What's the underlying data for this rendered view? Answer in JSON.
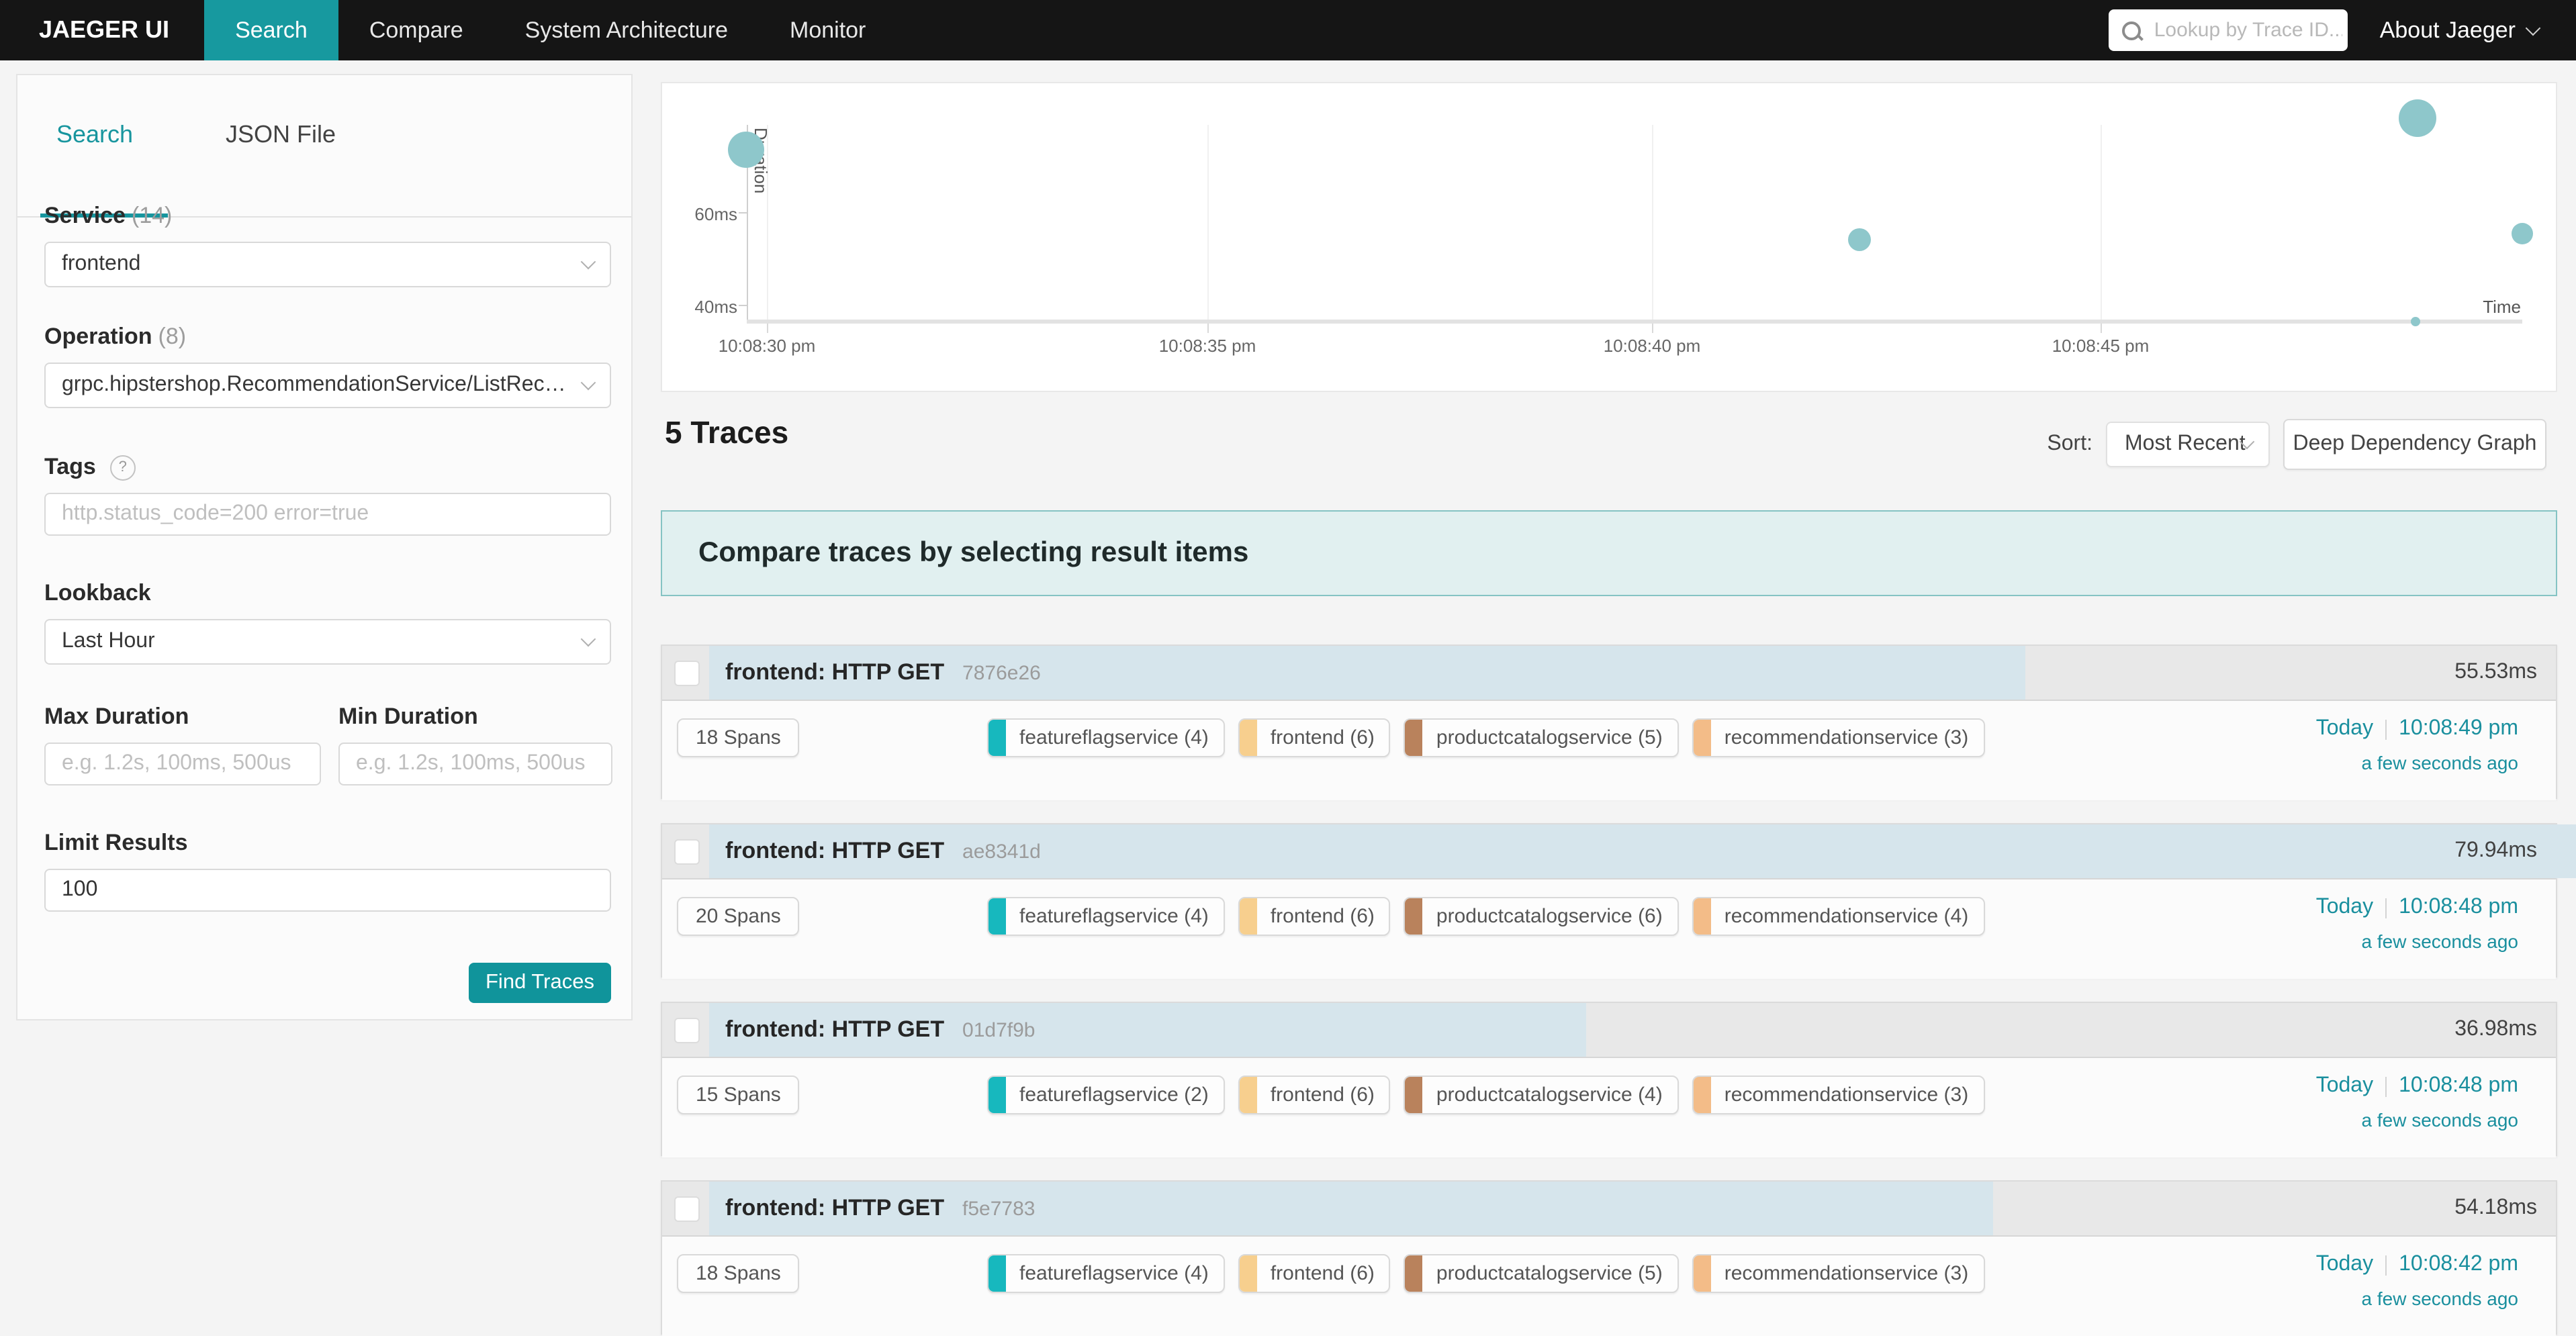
{
  "colors": {
    "accent_teal": "#17999f",
    "link_teal": "#1a8f9e",
    "nav_bg": "#151515",
    "bubble": "#8ec7cb",
    "duration_bar": "#d6e5ec",
    "banner_bg": "#e1f0f0",
    "banner_border": "#85c3c3"
  },
  "nav": {
    "brand": "JAEGER UI",
    "items": [
      {
        "label": "Search",
        "active": true
      },
      {
        "label": "Compare",
        "active": false
      },
      {
        "label": "System Architecture",
        "active": false
      },
      {
        "label": "Monitor",
        "active": false
      }
    ],
    "trace_lookup_placeholder": "Lookup by Trace ID...",
    "about_label": "About Jaeger"
  },
  "sidebar": {
    "tabs": [
      {
        "label": "Search",
        "active": true
      },
      {
        "label": "JSON File",
        "active": false
      }
    ],
    "service": {
      "label": "Service",
      "count": "(14)",
      "value": "frontend"
    },
    "operation": {
      "label": "Operation",
      "count": "(8)",
      "value": "grpc.hipstershop.RecommendationService/ListRecommend..."
    },
    "tags": {
      "label": "Tags",
      "help_icon": "?",
      "placeholder": "http.status_code=200 error=true"
    },
    "lookback": {
      "label": "Lookback",
      "value": "Last Hour"
    },
    "max_duration": {
      "label": "Max Duration",
      "placeholder": "e.g. 1.2s, 100ms, 500us"
    },
    "min_duration": {
      "label": "Min Duration",
      "placeholder": "e.g. 1.2s, 100ms, 500us"
    },
    "limit": {
      "label": "Limit Results",
      "value": "100"
    },
    "find_button": "Find Traces"
  },
  "chart_data": {
    "type": "scatter",
    "xlabel": "Time",
    "ylabel": "Duration",
    "x_ticks": [
      "10:08:30 pm",
      "10:08:35 pm",
      "10:08:40 pm",
      "10:08:45 pm"
    ],
    "y_ticks": [
      "60ms",
      "40ms"
    ],
    "points": [
      {
        "time": "10:08:30 pm",
        "duration_ms": 74,
        "cx": 62,
        "cy": 49,
        "r": 13.5
      },
      {
        "time": "10:08:42 pm",
        "duration_ms": 54.18,
        "cx": 891,
        "cy": 116,
        "r": 8.5
      },
      {
        "time": "10:08:48 pm",
        "duration_ms": 79.94,
        "cx": 1307,
        "cy": 26,
        "r": 14
      },
      {
        "time": "10:08:49 pm",
        "duration_ms": 55.53,
        "cx": 1385,
        "cy": 112,
        "r": 8
      },
      {
        "time": "10:08:48 pm",
        "duration_ms": 36.98,
        "cx": 1305,
        "cy": 177,
        "r": 3.5
      }
    ]
  },
  "results": {
    "count_label": "5 Traces",
    "sort_label": "Sort:",
    "sort_value": "Most Recent",
    "ddg_button": "Deep Dependency Graph",
    "banner": "Compare traces by selecting result items",
    "traces": [
      {
        "title": "frontend: HTTP GET",
        "trace_id": "7876e26",
        "duration": "55.53ms",
        "bar_width": "69.5%",
        "spans": "18 Spans",
        "services": [
          {
            "name": "featureflagservice (4)",
            "color": "#17b8be"
          },
          {
            "name": "frontend (6)",
            "color": "#f7cf8e"
          },
          {
            "name": "productcatalogservice (5)",
            "color": "#b9825c"
          },
          {
            "name": "recommendationservice (3)",
            "color": "#f3bc88"
          }
        ],
        "day": "Today",
        "time": "10:08:49 pm",
        "relative": "a few seconds ago"
      },
      {
        "title": "frontend: HTTP GET",
        "trace_id": "ae8341d",
        "duration": "79.94ms",
        "bar_width": "100%",
        "spans": "20 Spans",
        "services": [
          {
            "name": "featureflagservice (4)",
            "color": "#17b8be"
          },
          {
            "name": "frontend (6)",
            "color": "#f7cf8e"
          },
          {
            "name": "productcatalogservice (6)",
            "color": "#b9825c"
          },
          {
            "name": "recommendationservice (4)",
            "color": "#f3bc88"
          }
        ],
        "day": "Today",
        "time": "10:08:48 pm",
        "relative": "a few seconds ago"
      },
      {
        "title": "frontend: HTTP GET",
        "trace_id": "01d7f9b",
        "duration": "36.98ms",
        "bar_width": "46.3%",
        "spans": "15 Spans",
        "services": [
          {
            "name": "featureflagservice (2)",
            "color": "#17b8be"
          },
          {
            "name": "frontend (6)",
            "color": "#f7cf8e"
          },
          {
            "name": "productcatalogservice (4)",
            "color": "#b9825c"
          },
          {
            "name": "recommendationservice (3)",
            "color": "#f3bc88"
          }
        ],
        "day": "Today",
        "time": "10:08:48 pm",
        "relative": "a few seconds ago"
      },
      {
        "title": "frontend: HTTP GET",
        "trace_id": "f5e7783",
        "duration": "54.18ms",
        "bar_width": "67.8%",
        "spans": "18 Spans",
        "services": [
          {
            "name": "featureflagservice (4)",
            "color": "#17b8be"
          },
          {
            "name": "frontend (6)",
            "color": "#f7cf8e"
          },
          {
            "name": "productcatalogservice (5)",
            "color": "#b9825c"
          },
          {
            "name": "recommendationservice (3)",
            "color": "#f3bc88"
          }
        ],
        "day": "Today",
        "time": "10:08:42 pm",
        "relative": "a few seconds ago"
      }
    ]
  }
}
